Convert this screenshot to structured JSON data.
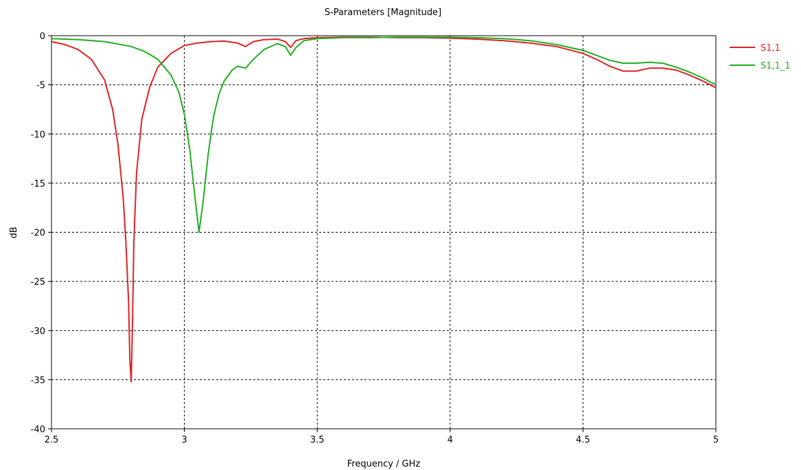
{
  "chart_data": {
    "type": "line",
    "title": "S-Parameters [Magnitude]",
    "xlabel": "Frequency / GHz",
    "ylabel": "dB",
    "xlim": [
      2.5,
      5
    ],
    "ylim": [
      -40,
      0
    ],
    "x_ticks": [
      "2.5",
      "3",
      "3.5",
      "4",
      "4.5",
      "5"
    ],
    "y_ticks": [
      "0",
      "-5",
      "-10",
      "-15",
      "-20",
      "-25",
      "-30",
      "-35",
      "-40"
    ],
    "grid": true,
    "legend_position": "right",
    "series": [
      {
        "name": "S1,1",
        "color": "#e02020",
        "points": [
          [
            2.5,
            -0.6
          ],
          [
            2.55,
            -0.9
          ],
          [
            2.6,
            -1.4
          ],
          [
            2.65,
            -2.4
          ],
          [
            2.7,
            -4.5
          ],
          [
            2.73,
            -7.5
          ],
          [
            2.75,
            -11
          ],
          [
            2.77,
            -16.5
          ],
          [
            2.78,
            -21
          ],
          [
            2.79,
            -27
          ],
          [
            2.795,
            -33
          ],
          [
            2.8,
            -35.2
          ],
          [
            2.805,
            -29
          ],
          [
            2.81,
            -21
          ],
          [
            2.82,
            -14
          ],
          [
            2.84,
            -8.5
          ],
          [
            2.87,
            -5.2
          ],
          [
            2.9,
            -3.2
          ],
          [
            2.95,
            -1.8
          ],
          [
            3.0,
            -1.0
          ],
          [
            3.05,
            -0.75
          ],
          [
            3.1,
            -0.6
          ],
          [
            3.15,
            -0.55
          ],
          [
            3.2,
            -0.75
          ],
          [
            3.23,
            -1.1
          ],
          [
            3.26,
            -0.6
          ],
          [
            3.3,
            -0.4
          ],
          [
            3.35,
            -0.35
          ],
          [
            3.38,
            -0.6
          ],
          [
            3.4,
            -1.2
          ],
          [
            3.42,
            -0.5
          ],
          [
            3.45,
            -0.3
          ],
          [
            3.5,
            -0.2
          ],
          [
            3.6,
            -0.15
          ],
          [
            3.7,
            -0.15
          ],
          [
            3.8,
            -0.2
          ],
          [
            3.9,
            -0.2
          ],
          [
            4.0,
            -0.25
          ],
          [
            4.1,
            -0.35
          ],
          [
            4.2,
            -0.5
          ],
          [
            4.3,
            -0.75
          ],
          [
            4.4,
            -1.1
          ],
          [
            4.5,
            -1.8
          ],
          [
            4.55,
            -2.4
          ],
          [
            4.6,
            -3.1
          ],
          [
            4.65,
            -3.6
          ],
          [
            4.7,
            -3.6
          ],
          [
            4.75,
            -3.3
          ],
          [
            4.8,
            -3.3
          ],
          [
            4.85,
            -3.5
          ],
          [
            4.9,
            -4.0
          ],
          [
            4.95,
            -4.6
          ],
          [
            5.0,
            -5.3
          ]
        ]
      },
      {
        "name": "S1,1_1",
        "color": "#1fae1f",
        "points": [
          [
            2.5,
            -0.3
          ],
          [
            2.6,
            -0.4
          ],
          [
            2.7,
            -0.6
          ],
          [
            2.8,
            -1.1
          ],
          [
            2.85,
            -1.6
          ],
          [
            2.9,
            -2.4
          ],
          [
            2.95,
            -4.0
          ],
          [
            2.98,
            -5.8
          ],
          [
            3.0,
            -8.0
          ],
          [
            3.02,
            -11.5
          ],
          [
            3.04,
            -16.5
          ],
          [
            3.055,
            -20.0
          ],
          [
            3.07,
            -17
          ],
          [
            3.09,
            -12
          ],
          [
            3.11,
            -8.2
          ],
          [
            3.13,
            -6.0
          ],
          [
            3.15,
            -4.6
          ],
          [
            3.18,
            -3.5
          ],
          [
            3.2,
            -3.1
          ],
          [
            3.23,
            -3.3
          ],
          [
            3.26,
            -2.4
          ],
          [
            3.3,
            -1.4
          ],
          [
            3.35,
            -0.8
          ],
          [
            3.38,
            -1.1
          ],
          [
            3.4,
            -2.0
          ],
          [
            3.42,
            -1.2
          ],
          [
            3.45,
            -0.5
          ],
          [
            3.5,
            -0.3
          ],
          [
            3.6,
            -0.2
          ],
          [
            3.7,
            -0.2
          ],
          [
            3.8,
            -0.15
          ],
          [
            4.0,
            -0.15
          ],
          [
            4.1,
            -0.2
          ],
          [
            4.2,
            -0.3
          ],
          [
            4.3,
            -0.5
          ],
          [
            4.4,
            -0.9
          ],
          [
            4.5,
            -1.5
          ],
          [
            4.55,
            -2.0
          ],
          [
            4.6,
            -2.5
          ],
          [
            4.65,
            -2.8
          ],
          [
            4.7,
            -2.8
          ],
          [
            4.75,
            -2.7
          ],
          [
            4.8,
            -2.8
          ],
          [
            4.85,
            -3.2
          ],
          [
            4.9,
            -3.7
          ],
          [
            4.95,
            -4.3
          ],
          [
            5.0,
            -5.0
          ]
        ]
      }
    ]
  }
}
